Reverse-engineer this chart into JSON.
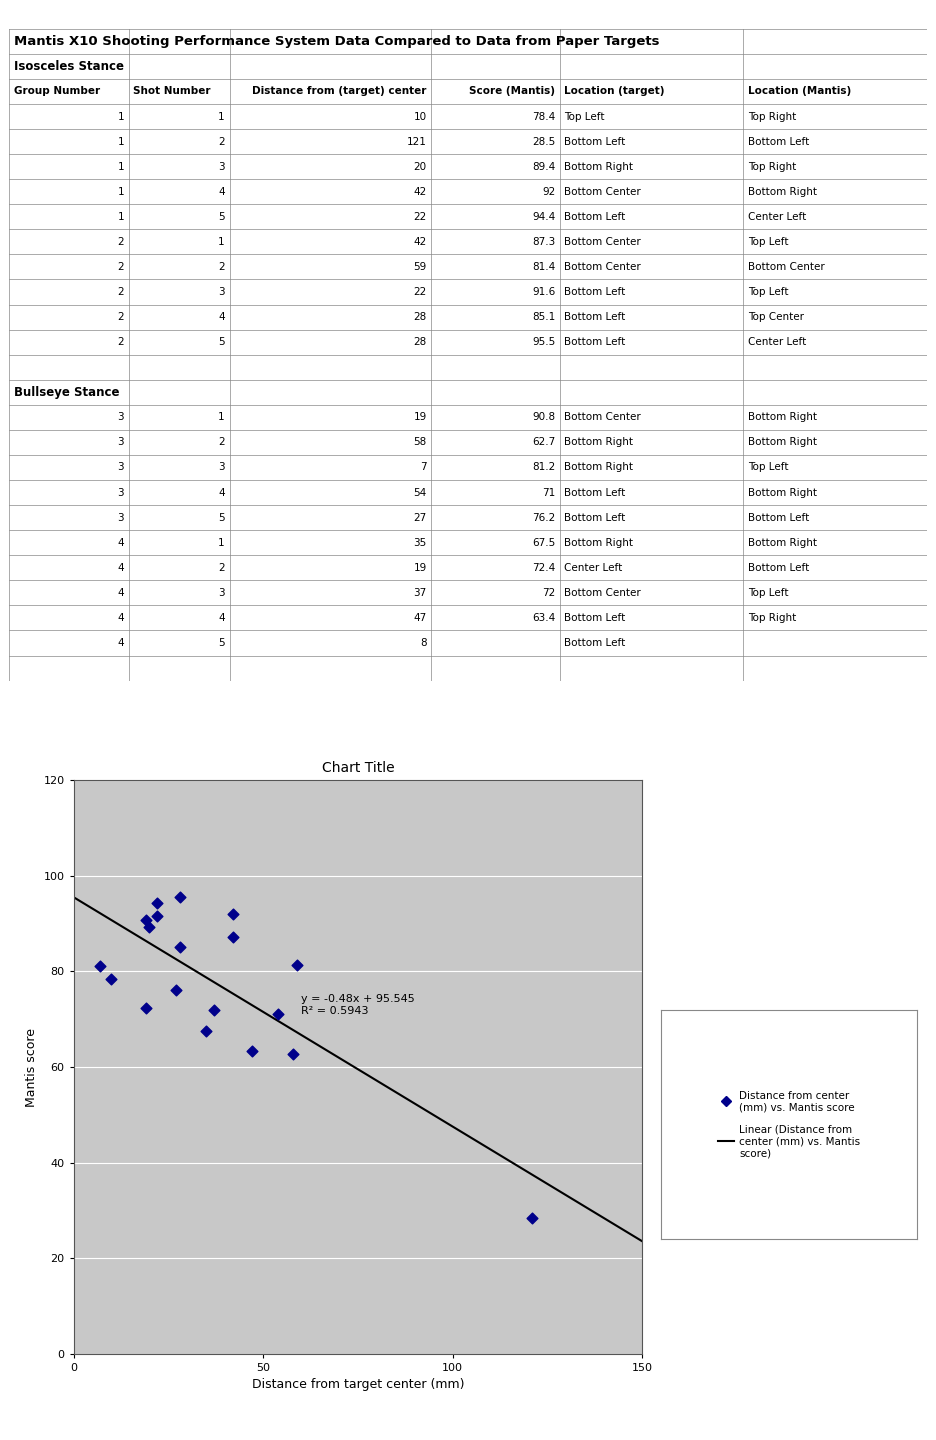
{
  "title": "Mantis X10 Shooting Performance System Data Compared to Data from Paper Targets",
  "stance1_label": "Isosceles Stance",
  "stance2_label": "Bullseye Stance",
  "headers": [
    "Group Number",
    "Shot Number",
    "Distance from (target) center",
    "Score (Mantis)",
    "Location (target)",
    "Location (Mantis)"
  ],
  "rows_iso": [
    [
      1,
      1,
      10,
      "78.4",
      "Top Left",
      "Top Right"
    ],
    [
      1,
      2,
      121,
      "28.5",
      "Bottom Left",
      "Bottom Left"
    ],
    [
      1,
      3,
      20,
      "89.4",
      "Bottom Right",
      "Top Right"
    ],
    [
      1,
      4,
      42,
      "92",
      "Bottom Center",
      "Bottom Right"
    ],
    [
      1,
      5,
      22,
      "94.4",
      "Bottom Left",
      "Center Left"
    ],
    [
      2,
      1,
      42,
      "87.3",
      "Bottom Center",
      "Top Left"
    ],
    [
      2,
      2,
      59,
      "81.4",
      "Bottom Center",
      "Bottom Center"
    ],
    [
      2,
      3,
      22,
      "91.6",
      "Bottom Left",
      "Top Left"
    ],
    [
      2,
      4,
      28,
      "85.1",
      "Bottom Left",
      "Top Center"
    ],
    [
      2,
      5,
      28,
      "95.5",
      "Bottom Left",
      "Center Left"
    ]
  ],
  "rows_bull": [
    [
      3,
      1,
      19,
      "90.8",
      "Bottom Center",
      "Bottom Right"
    ],
    [
      3,
      2,
      58,
      "62.7",
      "Bottom Right",
      "Bottom Right"
    ],
    [
      3,
      3,
      7,
      "81.2",
      "Bottom Right",
      "Top Left"
    ],
    [
      3,
      4,
      54,
      "71",
      "Bottom Left",
      "Bottom Right"
    ],
    [
      3,
      5,
      27,
      "76.2",
      "Bottom Left",
      "Bottom Left"
    ],
    [
      4,
      1,
      35,
      "67.5",
      "Bottom Right",
      "Bottom Right"
    ],
    [
      4,
      2,
      19,
      "72.4",
      "Center Left",
      "Bottom Left"
    ],
    [
      4,
      3,
      37,
      "72",
      "Bottom Center",
      "Top Left"
    ],
    [
      4,
      4,
      47,
      "63.4",
      "Bottom Left",
      "Top Right"
    ],
    [
      4,
      5,
      8,
      "",
      "Bottom Left",
      ""
    ]
  ],
  "chart_title": "Chart Title",
  "xlabel": "Distance from target center (mm)",
  "ylabel": "Mantis score",
  "scatter_x": [
    10,
    121,
    20,
    42,
    22,
    42,
    59,
    22,
    28,
    28,
    19,
    58,
    7,
    54,
    27,
    35,
    19,
    37,
    47
  ],
  "scatter_y": [
    78.4,
    28.5,
    89.4,
    92,
    94.4,
    87.3,
    81.4,
    91.6,
    85.1,
    95.5,
    90.8,
    62.7,
    81.2,
    71,
    76.2,
    67.5,
    72.4,
    72,
    63.4
  ],
  "scatter_color": "#00008B",
  "scatter_marker": "D",
  "scatter_size": 30,
  "line_slope": -0.48,
  "line_intercept": 95.545,
  "equation_text": "y = -0.48x + 95.545",
  "r2_text": "R² = 0.5943",
  "legend_scatter": "Distance from center\n(mm) vs. Mantis score",
  "legend_line": "Linear (Distance from\ncenter (mm) vs. Mantis\nscore)",
  "xlim": [
    0,
    150
  ],
  "ylim": [
    0,
    120
  ],
  "xticks": [
    0,
    50,
    100,
    150
  ],
  "yticks": [
    0,
    20,
    40,
    60,
    80,
    100,
    120
  ],
  "plot_area_color": "#c8c8c8",
  "col_widths": [
    0.13,
    0.11,
    0.22,
    0.14,
    0.2,
    0.2
  ]
}
